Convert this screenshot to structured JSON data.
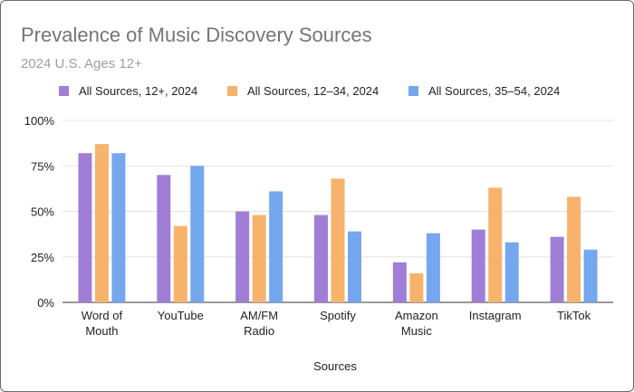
{
  "chart_data": {
    "type": "bar",
    "title": "Prevalence of Music Discovery Sources",
    "subtitle": "2024 U.S. Ages 12+",
    "xlabel": "Sources",
    "ylabel": "",
    "ylim": [
      0,
      100
    ],
    "yticks": [
      "0%",
      "25%",
      "50%",
      "75%",
      "100%"
    ],
    "grid": true,
    "legend_position": "top",
    "categories": [
      [
        "Word of",
        "Mouth"
      ],
      [
        "YouTube"
      ],
      [
        "AM/FM",
        "Radio"
      ],
      [
        "Spotify"
      ],
      [
        "Amazon",
        "Music"
      ],
      [
        "Instagram"
      ],
      [
        "TikTok"
      ]
    ],
    "series": [
      {
        "name": "All Sources, 12+, 2024",
        "color": "#a07ed6",
        "values": [
          82,
          70,
          50,
          48,
          22,
          40,
          36
        ]
      },
      {
        "name": "All Sources, 12–34, 2024",
        "color": "#f7b26b",
        "values": [
          87,
          42,
          48,
          68,
          16,
          63,
          58
        ]
      },
      {
        "name": "All Sources, 35–54, 2024",
        "color": "#75a7ee",
        "values": [
          82,
          75,
          61,
          39,
          38,
          33,
          29
        ]
      }
    ]
  }
}
